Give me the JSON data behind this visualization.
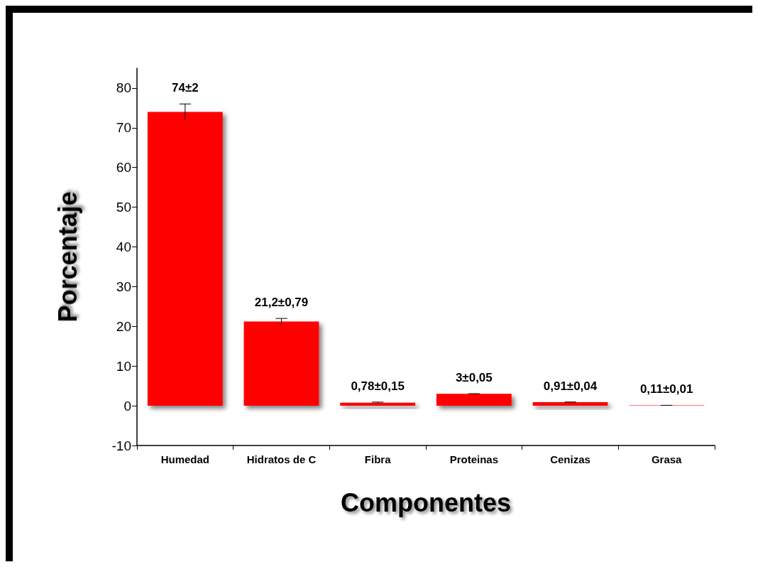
{
  "chart_data": {
    "type": "bar",
    "xlabel": "Componentes",
    "ylabel": "Porcentaje",
    "categories": [
      "Humedad",
      "Hidratos de C",
      "Fibra",
      "Proteinas",
      "Cenizas",
      "Grasa"
    ],
    "values": [
      74,
      21.2,
      0.78,
      3,
      0.91,
      0.11
    ],
    "errors": [
      2,
      0.79,
      0.15,
      0.05,
      0.04,
      0.01
    ],
    "value_labels": [
      "74±2",
      "21,2±0,79",
      "0,78±0,15",
      "3±0,05",
      "0,91±0,04",
      "0,11±0,01"
    ],
    "color": "#ff0000",
    "ylim": [
      -10,
      85
    ],
    "yticks": [
      -10,
      0,
      10,
      20,
      30,
      40,
      50,
      60,
      70,
      80
    ],
    "grid": false
  }
}
